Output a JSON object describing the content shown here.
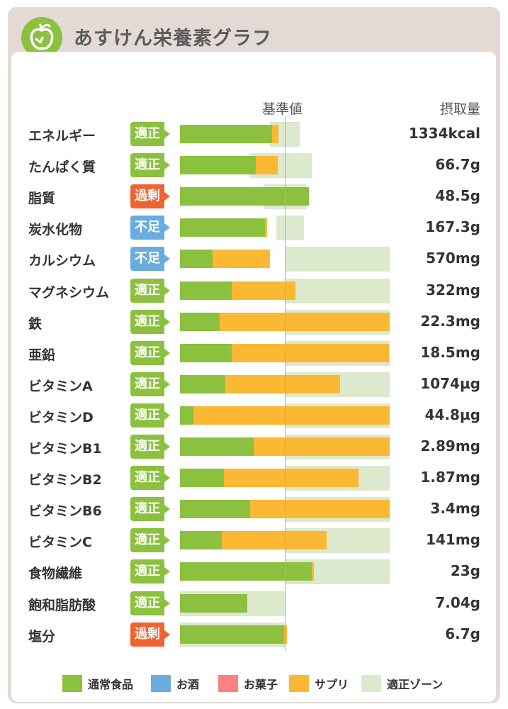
{
  "app": {
    "title": "あすけん栄養素グラフ",
    "logo_icon": "apple-icon"
  },
  "chart_data": {
    "type": "bar",
    "orientation": "horizontal",
    "stacked": true,
    "title": "あすけん栄養素グラフ",
    "reference_label": "基準値",
    "amount_header": "摂取量",
    "units": "percent of reference value (基準値 = 100)",
    "xlim": [
      0,
      200
    ],
    "colors": {
      "通常食品": "#8cc03f",
      "お酒": "#6aacdf",
      "お菓子": "#ff8080",
      "サプリ": "#fbb833",
      "適正ゾーン": "#dce9cd"
    },
    "status_colors": {
      "適正": "#8cc03f",
      "過剰": "#ee6332",
      "不足": "#6aacdf"
    },
    "legend": [
      "通常食品",
      "お酒",
      "お菓子",
      "サプリ",
      "適正ゾーン"
    ],
    "nutrients": [
      {
        "name": "エネルギー",
        "status": "適正",
        "amount": "1334kcal",
        "food": 88,
        "supplement": 6,
        "zone": [
          86,
          114
        ]
      },
      {
        "name": "たんぱく質",
        "status": "適正",
        "amount": "66.7g",
        "food": 72,
        "supplement": 21,
        "zone": [
          66,
          126
        ]
      },
      {
        "name": "脂質",
        "status": "過剰",
        "amount": "48.5g",
        "food": 123,
        "supplement": 0,
        "zone": [
          80,
          120
        ]
      },
      {
        "name": "炭水化物",
        "status": "不足",
        "amount": "167.3g",
        "food": 81,
        "supplement": 2,
        "zone": [
          92,
          118
        ]
      },
      {
        "name": "カルシウム",
        "status": "不足",
        "amount": "570mg",
        "food": 31,
        "supplement": 55,
        "zone": [
          100,
          200
        ]
      },
      {
        "name": "マグネシウム",
        "status": "適正",
        "amount": "322mg",
        "food": 49,
        "supplement": 61,
        "zone": [
          100,
          200
        ]
      },
      {
        "name": "鉄",
        "status": "適正",
        "amount": "22.3mg",
        "food": 38,
        "supplement": 162,
        "zone": [
          100,
          200
        ]
      },
      {
        "name": "亜鉛",
        "status": "適正",
        "amount": "18.5mg",
        "food": 49,
        "supplement": 150,
        "zone": [
          100,
          200
        ]
      },
      {
        "name": "ビタミンA",
        "status": "適正",
        "amount": "1074µg",
        "food": 43,
        "supplement": 110,
        "zone": [
          100,
          200
        ]
      },
      {
        "name": "ビタミンD",
        "status": "適正",
        "amount": "44.8µg",
        "food": 13,
        "supplement": 187,
        "zone": [
          100,
          200
        ]
      },
      {
        "name": "ビタミンB1",
        "status": "適正",
        "amount": "2.89mg",
        "food": 70,
        "supplement": 130,
        "zone": [
          100,
          200
        ]
      },
      {
        "name": "ビタミンB2",
        "status": "適正",
        "amount": "1.87mg",
        "food": 42,
        "supplement": 128,
        "zone": [
          100,
          200
        ]
      },
      {
        "name": "ビタミンB6",
        "status": "適正",
        "amount": "3.4mg",
        "food": 67,
        "supplement": 133,
        "zone": [
          100,
          200
        ]
      },
      {
        "name": "ビタミンC",
        "status": "適正",
        "amount": "141mg",
        "food": 40,
        "supplement": 100,
        "zone": [
          100,
          200
        ]
      },
      {
        "name": "食物繊維",
        "status": "適正",
        "amount": "23g",
        "food": 126,
        "supplement": 2,
        "zone": [
          100,
          200
        ]
      },
      {
        "name": "飽和脂肪酸",
        "status": "適正",
        "amount": "7.04g",
        "food": 64,
        "supplement": 0,
        "zone": [
          0,
          100
        ]
      },
      {
        "name": "塩分",
        "status": "過剰",
        "amount": "6.7g",
        "food": 99,
        "supplement": 3,
        "zone": [
          0,
          100
        ]
      }
    ]
  }
}
